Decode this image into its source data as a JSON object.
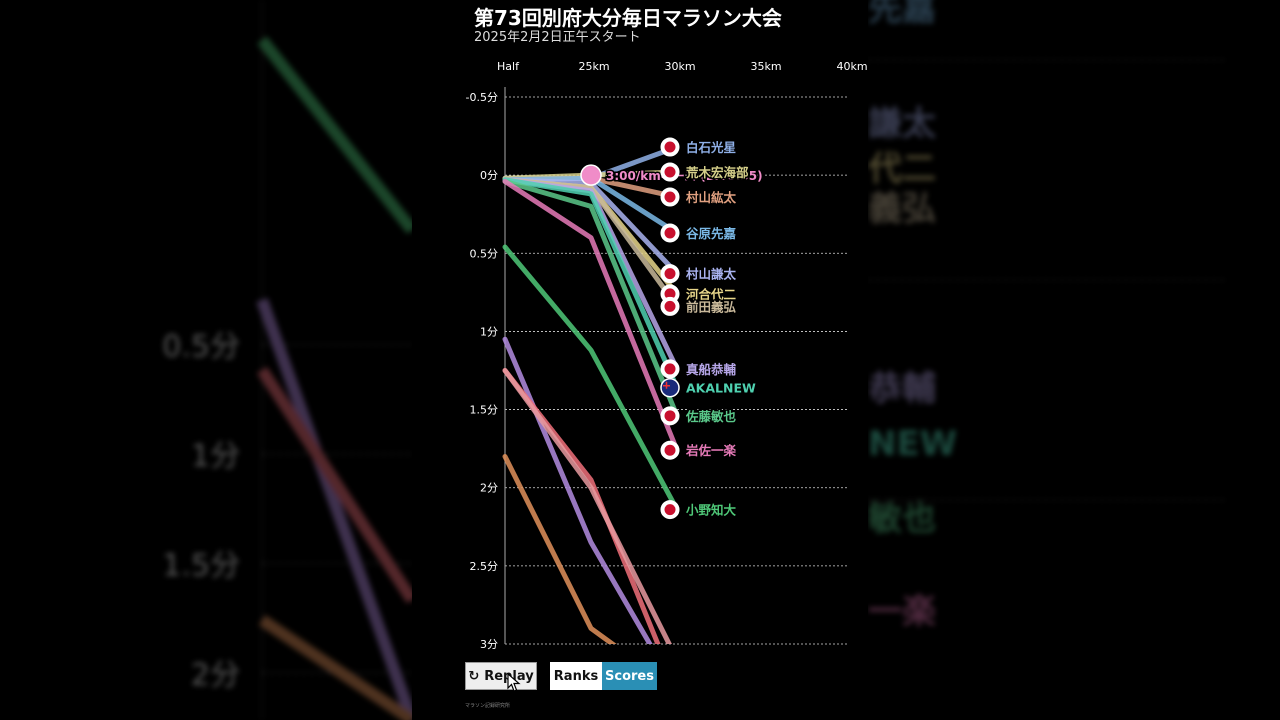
{
  "header": {
    "title": "第73回別府大分毎日マラソン大会",
    "subtitle": "2025年2月2日正午スタート"
  },
  "controls": {
    "replay_label": "Replay",
    "ranks_label": "Ranks",
    "scores_label": "Scores",
    "active_mode": "Scores"
  },
  "credit": "マラソン記録研究所",
  "background": {
    "left_ticks": [
      "0.5分",
      "1分",
      "1.5分",
      "2分"
    ],
    "right_labels": [
      "先嘉",
      "謙太",
      "代二",
      "義弘",
      "恭輔",
      "NEW",
      "敏也",
      "一楽"
    ]
  },
  "chart_data": {
    "type": "line",
    "x_categories": [
      "Half",
      "25km",
      "30km",
      "35km",
      "40km"
    ],
    "y_ticks": [
      "-0.5分",
      "0分",
      "0.5分",
      "1分",
      "1.5分",
      "2分",
      "2.5分",
      "3分"
    ],
    "ylim": [
      -0.5,
      3
    ],
    "y_unit": "minutes behind 3:00/km pace",
    "pace_marker": {
      "label": "3:00/kmペース (2:06:35)",
      "x": "25km",
      "y": 0
    },
    "series": [
      {
        "name": "白石光星",
        "flag": "jp",
        "color": "#8fb0e8",
        "values": [
          0.02,
          0.02,
          -0.18
        ]
      },
      {
        "name": "荒木宏海部",
        "flag": "jp",
        "color": "#d6d08a",
        "values": [
          0.02,
          0.0,
          -0.02
        ]
      },
      {
        "name": "村山紘太",
        "flag": "jp",
        "color": "#e0a080",
        "values": [
          0.03,
          0.02,
          0.14
        ]
      },
      {
        "name": "谷原先嘉",
        "flag": "jp",
        "color": "#7ab8e6",
        "values": [
          0.03,
          0.02,
          0.37
        ]
      },
      {
        "name": "村山謙太",
        "flag": "jp",
        "color": "#a9b3f0",
        "values": [
          0.03,
          0.05,
          0.63
        ]
      },
      {
        "name": "河合代二",
        "flag": "jp",
        "color": "#e8d68a",
        "values": [
          0.03,
          0.08,
          0.76
        ]
      },
      {
        "name": "前田義弘",
        "flag": "jp",
        "color": "#c8b89a",
        "values": [
          0.03,
          0.08,
          0.84
        ]
      },
      {
        "name": "真船恭輔",
        "flag": "jp",
        "color": "#b6a6e8",
        "values": [
          0.03,
          0.1,
          1.24
        ]
      },
      {
        "name": "AKALNEW",
        "flag": "au",
        "color": "#4fd1b0",
        "values": [
          0.03,
          0.12,
          1.36
        ]
      },
      {
        "name": "佐藤敏也",
        "flag": "jp",
        "color": "#5ac88a",
        "values": [
          0.04,
          0.2,
          1.54
        ]
      },
      {
        "name": "岩佐一楽",
        "flag": "jp",
        "color": "#e67ab8",
        "values": [
          0.04,
          0.4,
          1.76
        ]
      },
      {
        "name": "小野知大",
        "flag": "jp",
        "color": "#4fc878",
        "values": [
          0.46,
          1.12,
          2.14
        ]
      },
      {
        "name": "",
        "flag": "",
        "color": "#b38ce0",
        "values": [
          1.05,
          2.35,
          3.3
        ]
      },
      {
        "name": "",
        "flag": "",
        "color": "#f0707a",
        "values": [
          1.25,
          1.95,
          3.3
        ]
      },
      {
        "name": "",
        "flag": "",
        "color": "#e0905a",
        "values": [
          1.8,
          2.9,
          3.3
        ]
      },
      {
        "name": "",
        "flag": "",
        "color": "#e89aa0",
        "values": [
          1.25,
          2.0,
          3.1
        ]
      }
    ]
  }
}
